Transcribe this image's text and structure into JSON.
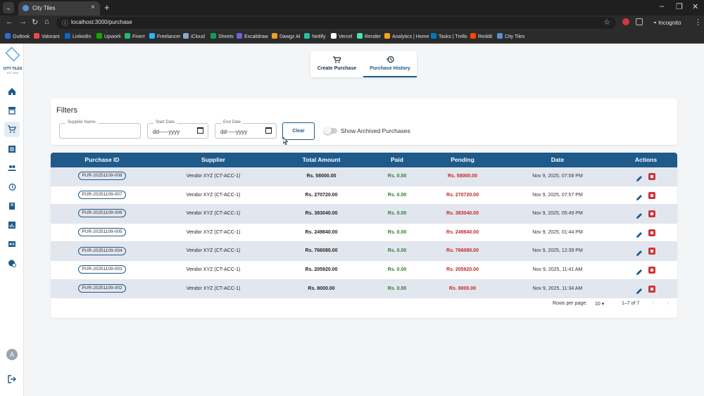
{
  "browser": {
    "tab_title": "City Tiles",
    "url": "localhost:3000/purchase",
    "incognito_label": "Incognito",
    "bookmarks": [
      "Outlook",
      "Valorant",
      "LinkedIn",
      "Upwork",
      "Fiverr",
      "Freelancer",
      "iCloud",
      "Sheets",
      "Excalidraw",
      "Dawgz AI",
      "Netlify",
      "Vercel",
      "Render",
      "Analytics | Home",
      "Tasks | Trello",
      "Reddit",
      "City Tiles"
    ]
  },
  "brand": {
    "name": "CITY TILES",
    "sub": "EST. 2000"
  },
  "sidebar": {
    "items": [
      "home-icon",
      "inventory-icon",
      "cart-icon",
      "list-icon",
      "users-icon",
      "history-icon",
      "book-icon",
      "chart-icon",
      "badge-icon",
      "settings-icon"
    ],
    "active_index": 2,
    "avatar_letter": "A"
  },
  "tabs": [
    {
      "label": "Create Purchase",
      "icon": "cart-icon",
      "active": false
    },
    {
      "label": "Purchase History",
      "icon": "history-icon",
      "active": true
    }
  ],
  "filters": {
    "title": "Filters",
    "supplier_label": "Supplier Name",
    "supplier_value": "",
    "start_label": "Start Date",
    "start_value": "dd-----yyyy",
    "end_label": "End Date",
    "end_value": "dd-----yyyy",
    "clear_label": "Clear",
    "archived_label": "Show Archived Purchases",
    "archived_on": false
  },
  "table": {
    "headers": [
      "Purchase ID",
      "Supplier",
      "Total Amount",
      "Paid",
      "Pending",
      "Date",
      "Actions"
    ],
    "rows": [
      {
        "id": "PUR-20251109-008",
        "supplier": "Vendor XYZ (CT-ACC-1)",
        "total": "Rs. 58000.00",
        "paid": "Rs. 0.00",
        "pending": "Rs. 58000.00",
        "date": "Nov 9, 2025, 07:58 PM"
      },
      {
        "id": "PUR-20251109-007",
        "supplier": "Vendor XYZ (CT-ACC-1)",
        "total": "Rs. 270720.00",
        "paid": "Rs. 0.00",
        "pending": "Rs. 270720.00",
        "date": "Nov 9, 2025, 07:57 PM"
      },
      {
        "id": "PUR-20251109-006",
        "supplier": "Vendor XYZ (CT-ACC-1)",
        "total": "Rs. 383040.00",
        "paid": "Rs. 0.00",
        "pending": "Rs. 383040.00",
        "date": "Nov 9, 2025, 05:49 PM"
      },
      {
        "id": "PUR-20251109-005",
        "supplier": "Vendor XYZ (CT-ACC-1)",
        "total": "Rs. 249840.00",
        "paid": "Rs. 0.00",
        "pending": "Rs. 249840.00",
        "date": "Nov 9, 2025, 01:44 PM"
      },
      {
        "id": "PUR-20251109-004",
        "supplier": "Vendor XYZ (CT-ACC-1)",
        "total": "Rs. 766080.00",
        "paid": "Rs. 0.00",
        "pending": "Rs. 766080.00",
        "date": "Nov 9, 2025, 12:39 PM"
      },
      {
        "id": "PUR-20251109-003",
        "supplier": "Vendor XYZ (CT-ACC-1)",
        "total": "Rs. 205920.00",
        "paid": "Rs. 0.00",
        "pending": "Rs. 205920.00",
        "date": "Nov 9, 2025, 11:41 AM"
      },
      {
        "id": "PUR-20251109-002",
        "supplier": "Vendor XYZ (CT-ACC-1)",
        "total": "Rs. 8000.00",
        "paid": "Rs. 0.00",
        "pending": "Rs. 8000.00",
        "date": "Nov 9, 2025, 11:34 AM"
      }
    ]
  },
  "pagination": {
    "rows_per_page_label": "Rows per page:",
    "rows_per_page_value": "10",
    "range": "1–7 of 7"
  },
  "colors": {
    "primary": "#1e5a8a",
    "paid": "#2e7d32",
    "pending": "#c62828",
    "delete": "#d0343a"
  }
}
